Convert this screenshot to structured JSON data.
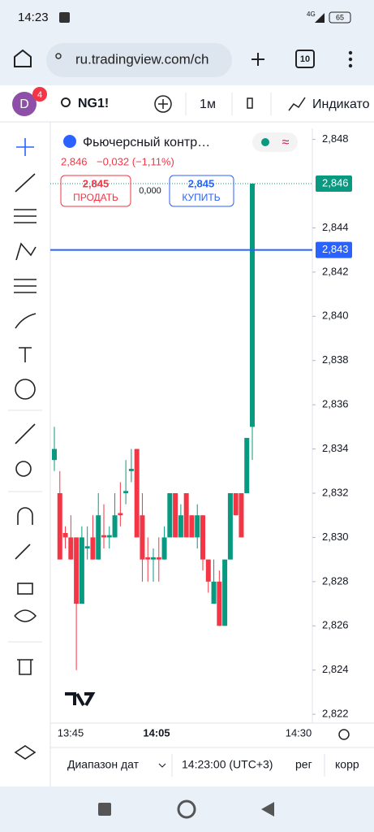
{
  "status": {
    "time": "14:23",
    "network": "4G",
    "battery": "65"
  },
  "browser": {
    "url": "ru.tradingview.com/ch",
    "tabs": "10"
  },
  "toolbar": {
    "avatar": "D",
    "badge": "4",
    "symbol": "NG1!",
    "interval": "1м",
    "indicators": "Индикато"
  },
  "chart_data": {
    "type": "candlestick",
    "title": "Фьючерсный контр…",
    "price": "2,846",
    "change": "−0,032 (−1,11%)",
    "sell_price": "2,845",
    "sell_label": "ПРОДАТЬ",
    "spread": "0,000",
    "buy_price": "2,845",
    "buy_label": "КУПИТЬ",
    "up_color": "#089981",
    "down_color": "#f23645",
    "ylim": [
      2.8216,
      2.8485
    ],
    "yticks": [
      {
        "value": 2.822,
        "label": "2,822"
      },
      {
        "value": 2.824,
        "label": "2,824"
      },
      {
        "value": 2.826,
        "label": "2,826"
      },
      {
        "value": 2.828,
        "label": "2,828"
      },
      {
        "value": 2.83,
        "label": "2,830"
      },
      {
        "value": 2.832,
        "label": "2,832"
      },
      {
        "value": 2.834,
        "label": "2,834"
      },
      {
        "value": 2.836,
        "label": "2,836"
      },
      {
        "value": 2.838,
        "label": "2,838"
      },
      {
        "value": 2.84,
        "label": "2,840"
      },
      {
        "value": 2.842,
        "label": "2,842"
      },
      {
        "value": 2.844,
        "label": "2,844"
      },
      {
        "value": 2.848,
        "label": "2,848"
      }
    ],
    "last_price": {
      "value": 2.846,
      "label": "2,846"
    },
    "line_price": {
      "value": 2.843,
      "label": "2,843",
      "color": "#2962ff"
    },
    "time_labels": [
      "13:45",
      "14:05",
      "14:30"
    ],
    "candles": [
      {
        "open": 2.8335,
        "high": 2.835,
        "low": 2.833,
        "close": 2.834
      },
      {
        "open": 2.832,
        "high": 2.833,
        "low": 2.829,
        "close": 2.829
      },
      {
        "open": 2.8302,
        "high": 2.8305,
        "low": 2.8295,
        "close": 2.83
      },
      {
        "open": 2.83,
        "high": 2.831,
        "low": 2.829,
        "close": 2.829
      },
      {
        "open": 2.83,
        "high": 2.83,
        "low": 2.824,
        "close": 2.827
      },
      {
        "open": 2.827,
        "high": 2.8305,
        "low": 2.827,
        "close": 2.83
      },
      {
        "open": 2.8295,
        "high": 2.8305,
        "low": 2.829,
        "close": 2.8296
      },
      {
        "open": 2.83,
        "high": 2.831,
        "low": 2.829,
        "close": 2.829
      },
      {
        "open": 2.829,
        "high": 2.832,
        "low": 2.829,
        "close": 2.831
      },
      {
        "open": 2.8301,
        "high": 2.8315,
        "low": 2.8295,
        "close": 2.83
      },
      {
        "open": 2.83,
        "high": 2.8305,
        "low": 2.8295,
        "close": 2.8301
      },
      {
        "open": 2.83,
        "high": 2.832,
        "low": 2.83,
        "close": 2.831
      },
      {
        "open": 2.8311,
        "high": 2.8325,
        "low": 2.8305,
        "close": 2.831
      },
      {
        "open": 2.832,
        "high": 2.8335,
        "low": 2.8315,
        "close": 2.8321
      },
      {
        "open": 2.833,
        "high": 2.834,
        "low": 2.8325,
        "close": 2.8331
      },
      {
        "open": 2.834,
        "high": 2.834,
        "low": 2.83,
        "close": 2.83
      },
      {
        "open": 2.831,
        "high": 2.832,
        "low": 2.828,
        "close": 2.829
      },
      {
        "open": 2.8291,
        "high": 2.83,
        "low": 2.828,
        "close": 2.829
      },
      {
        "open": 2.829,
        "high": 2.8295,
        "low": 2.828,
        "close": 2.8291
      },
      {
        "open": 2.8291,
        "high": 2.83,
        "low": 2.828,
        "close": 2.829
      },
      {
        "open": 2.829,
        "high": 2.8305,
        "low": 2.829,
        "close": 2.83
      },
      {
        "open": 2.83,
        "high": 2.832,
        "low": 2.83,
        "close": 2.832
      },
      {
        "open": 2.832,
        "high": 2.832,
        "low": 2.83,
        "close": 2.83
      },
      {
        "open": 2.83,
        "high": 2.8315,
        "low": 2.83,
        "close": 2.831
      },
      {
        "open": 2.832,
        "high": 2.832,
        "low": 2.83,
        "close": 2.83
      },
      {
        "open": 2.831,
        "high": 2.831,
        "low": 2.83,
        "close": 2.83
      },
      {
        "open": 2.83,
        "high": 2.8315,
        "low": 2.8295,
        "close": 2.831
      },
      {
        "open": 2.831,
        "high": 2.831,
        "low": 2.8285,
        "close": 2.829
      },
      {
        "open": 2.829,
        "high": 2.829,
        "low": 2.8275,
        "close": 2.828
      },
      {
        "open": 2.827,
        "high": 2.829,
        "low": 2.827,
        "close": 2.828
      },
      {
        "open": 2.828,
        "high": 2.8285,
        "low": 2.826,
        "close": 2.826
      },
      {
        "open": 2.826,
        "high": 2.829,
        "low": 2.826,
        "close": 2.829
      },
      {
        "open": 2.829,
        "high": 2.832,
        "low": 2.829,
        "close": 2.832
      },
      {
        "open": 2.832,
        "high": 2.832,
        "low": 2.831,
        "close": 2.831
      },
      {
        "open": 2.832,
        "high": 2.832,
        "low": 2.83,
        "close": 2.83
      },
      {
        "open": 2.832,
        "high": 2.8345,
        "low": 2.832,
        "close": 2.8345
      },
      {
        "open": 2.835,
        "high": 2.846,
        "low": 2.8335,
        "close": 2.846
      }
    ]
  },
  "bottom": {
    "range": "Диапазон дат",
    "time": "14:23:00 (UTC+3)",
    "reg": "рег",
    "corr": "корр"
  }
}
